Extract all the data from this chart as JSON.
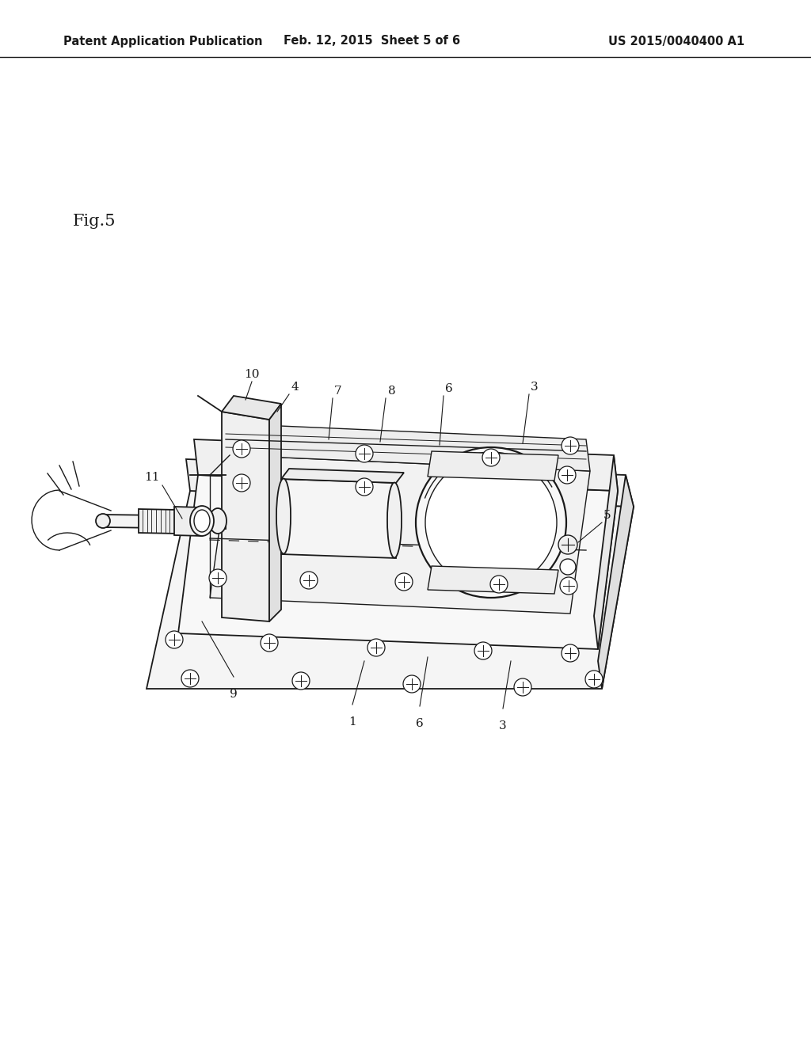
{
  "background_color": "#ffffff",
  "header_left": "Patent Application Publication",
  "header_center": "Feb. 12, 2015  Sheet 5 of 6",
  "header_right": "US 2015/0040400 A1",
  "fig_label": "Fig.5",
  "header_fontsize": 10.5,
  "fig_label_fontsize": 15,
  "label_fontsize": 11,
  "line_color": "#1a1a1a"
}
